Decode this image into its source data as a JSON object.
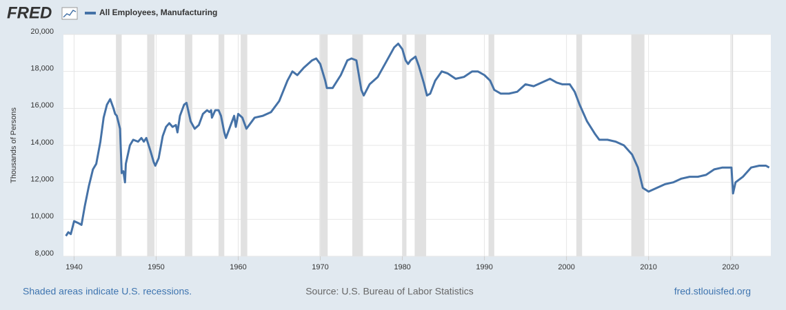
{
  "chart_data": {
    "type": "line",
    "logo": "FRED",
    "ylabel": "Thousands of Persons",
    "note": "Shaded areas indicate U.S. recessions.",
    "source": "Source: U.S. Bureau of Labor Statistics",
    "site": "fred.stlouisfed.org",
    "xlim": [
      1938.7,
      2024.9
    ],
    "xticks": [
      1940,
      1950,
      1960,
      1970,
      1980,
      1990,
      2000,
      2010,
      2020
    ],
    "ylim": [
      8000,
      20000
    ],
    "yticks": [
      {
        "value": 8000,
        "label": "8,000"
      },
      {
        "value": 10000,
        "label": "10,000"
      },
      {
        "value": 12000,
        "label": "12,000"
      },
      {
        "value": 14000,
        "label": "14,000"
      },
      {
        "value": 16000,
        "label": "16,000"
      },
      {
        "value": 18000,
        "label": "18,000"
      },
      {
        "value": 20000,
        "label": "20,000"
      }
    ],
    "grid": true,
    "recession_color": "#e1e1e1",
    "recessions": [
      [
        1945.1,
        1945.8
      ],
      [
        1948.9,
        1949.8
      ],
      [
        1953.5,
        1954.4
      ],
      [
        1957.6,
        1958.3
      ],
      [
        1960.3,
        1961.1
      ],
      [
        1969.9,
        1970.9
      ],
      [
        1973.9,
        1975.2
      ],
      [
        1980.0,
        1980.5
      ],
      [
        1981.5,
        1982.9
      ],
      [
        1990.5,
        1991.2
      ],
      [
        2001.2,
        2001.9
      ],
      [
        2007.9,
        2009.5
      ],
      [
        2020.1,
        2020.3
      ]
    ],
    "x": [
      1939.0,
      1939.3,
      1939.6,
      1940.0,
      1940.5,
      1940.9,
      1941.3,
      1941.8,
      1942.3,
      1942.7,
      1943.2,
      1943.6,
      1944.0,
      1944.4,
      1944.8,
      1945.0,
      1945.2,
      1945.6,
      1945.8,
      1946.0,
      1946.2,
      1946.3,
      1946.8,
      1947.2,
      1947.8,
      1948.2,
      1948.5,
      1948.8,
      1949.3,
      1949.7,
      1949.9,
      1950.3,
      1950.8,
      1951.2,
      1951.6,
      1952.0,
      1952.4,
      1952.6,
      1952.9,
      1953.4,
      1953.7,
      1954.2,
      1954.7,
      1955.2,
      1955.7,
      1956.2,
      1956.5,
      1956.7,
      1956.8,
      1957.2,
      1957.6,
      1957.9,
      1958.3,
      1958.5,
      1959.0,
      1959.5,
      1959.7,
      1960.0,
      1960.5,
      1961.0,
      1961.5,
      1962.0,
      1963.0,
      1964.0,
      1965.0,
      1966.0,
      1966.6,
      1967.2,
      1968.0,
      1969.0,
      1969.5,
      1970.0,
      1970.6,
      1970.8,
      1971.5,
      1972.5,
      1973.3,
      1973.8,
      1974.4,
      1975.0,
      1975.3,
      1976.0,
      1977.0,
      1978.0,
      1979.0,
      1979.5,
      1980.0,
      1980.4,
      1980.7,
      1981.0,
      1981.6,
      1982.0,
      1982.6,
      1983.0,
      1983.4,
      1984.0,
      1984.8,
      1985.5,
      1986.5,
      1987.5,
      1988.5,
      1989.2,
      1990.0,
      1990.7,
      1991.2,
      1992.0,
      1993.0,
      1994.0,
      1995.0,
      1996.0,
      1997.0,
      1998.0,
      1998.8,
      1999.5,
      2000.4,
      2001.0,
      2001.6,
      2002.5,
      2003.5,
      2004.0,
      2005.0,
      2006.0,
      2007.0,
      2008.0,
      2008.7,
      2009.3,
      2010.0,
      2011.0,
      2012.0,
      2013.0,
      2014.0,
      2015.0,
      2016.0,
      2017.0,
      2018.0,
      2019.0,
      2020.1,
      2020.3,
      2020.6,
      2021.5,
      2022.5,
      2023.5,
      2024.3,
      2024.7
    ],
    "series": [
      {
        "name": "All Employees, Manufacturing",
        "color": "#4572a7",
        "values": [
          9100,
          9300,
          9200,
          9900,
          9800,
          9700,
          10700,
          11800,
          12700,
          13000,
          14200,
          15500,
          16200,
          16500,
          16000,
          15700,
          15600,
          14900,
          12500,
          12600,
          12000,
          13000,
          14000,
          14300,
          14200,
          14400,
          14200,
          14400,
          13700,
          13100,
          12900,
          13300,
          14500,
          15000,
          15200,
          15000,
          15100,
          14700,
          15600,
          16200,
          16300,
          15300,
          14900,
          15100,
          15700,
          15900,
          15800,
          15900,
          15500,
          15900,
          15900,
          15600,
          14700,
          14400,
          15000,
          15600,
          15000,
          15700,
          15500,
          14900,
          15200,
          15500,
          15600,
          15800,
          16400,
          17500,
          18000,
          17800,
          18200,
          18600,
          18700,
          18400,
          17500,
          17100,
          17100,
          17800,
          18600,
          18700,
          18600,
          17000,
          16700,
          17300,
          17700,
          18500,
          19300,
          19500,
          19200,
          18600,
          18400,
          18600,
          18800,
          18300,
          17400,
          16700,
          16800,
          17500,
          18000,
          17900,
          17600,
          17700,
          18000,
          18000,
          17800,
          17500,
          17000,
          16800,
          16800,
          16900,
          17300,
          17200,
          17400,
          17600,
          17400,
          17300,
          17300,
          16900,
          16200,
          15300,
          14600,
          14300,
          14300,
          14200,
          14000,
          13500,
          12800,
          11700,
          11500,
          11700,
          11900,
          12000,
          12200,
          12300,
          12300,
          12400,
          12700,
          12800,
          12800,
          11400,
          12000,
          12300,
          12800,
          12900,
          12900,
          12800
        ]
      }
    ]
  }
}
